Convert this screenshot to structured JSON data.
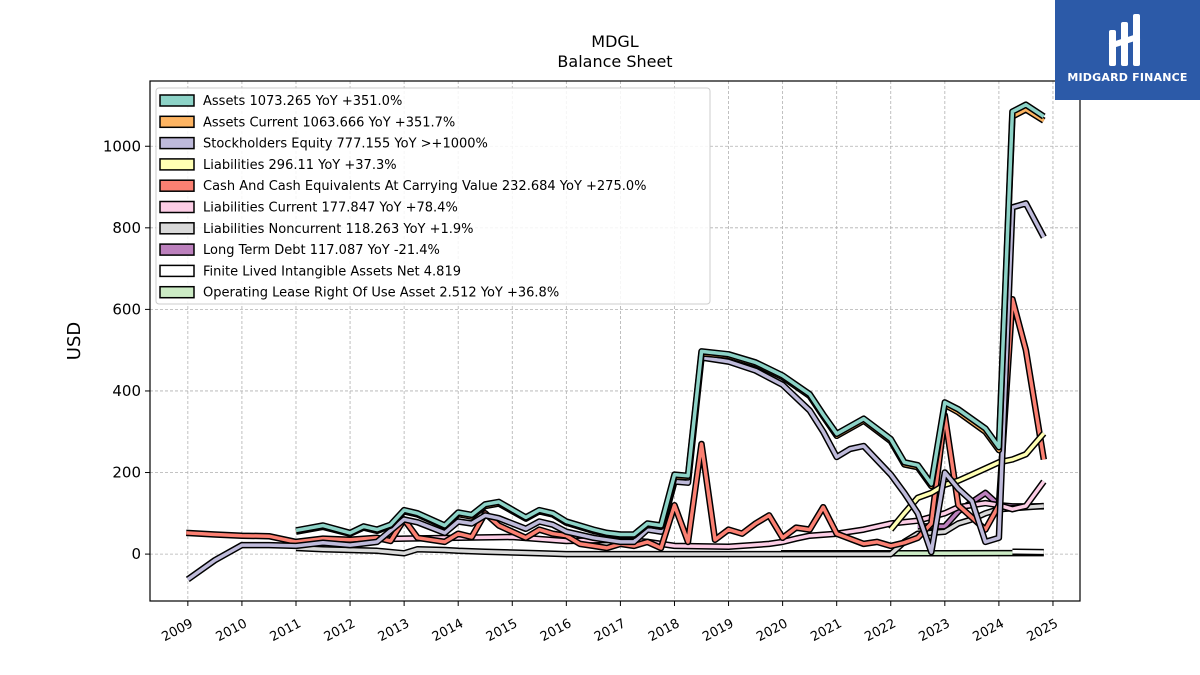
{
  "chart_data": {
    "type": "line",
    "title": "MDGL",
    "subtitle": "Balance  Sheet",
    "xlabel": "",
    "ylabel": "USD",
    "xlim": [
      2008.3,
      2025.5
    ],
    "ylim": [
      -115,
      1160
    ],
    "yticks": [
      0,
      200,
      400,
      600,
      800,
      1000
    ],
    "xticks": [
      "2009",
      "2010",
      "2011",
      "2012",
      "2013",
      "2014",
      "2015",
      "2016",
      "2017",
      "2018",
      "2019",
      "2020",
      "2021",
      "2022",
      "2023",
      "2024",
      "2025"
    ],
    "grid": true,
    "legend_position": "top-left",
    "series": [
      {
        "name": "Assets",
        "label": "Assets  1073.265 YoY +351.0%",
        "color": "#8dd3c7",
        "points": [
          [
            2011,
            58
          ],
          [
            2011.5,
            70
          ],
          [
            2012,
            52
          ],
          [
            2012.25,
            68
          ],
          [
            2012.5,
            60
          ],
          [
            2012.75,
            72
          ],
          [
            2013,
            108
          ],
          [
            2013.25,
            100
          ],
          [
            2013.75,
            70
          ],
          [
            2014,
            102
          ],
          [
            2014.25,
            96
          ],
          [
            2014.5,
            122
          ],
          [
            2014.75,
            128
          ],
          [
            2015.25,
            90
          ],
          [
            2015.5,
            108
          ],
          [
            2015.75,
            100
          ],
          [
            2016,
            80
          ],
          [
            2016.5,
            60
          ],
          [
            2016.75,
            52
          ],
          [
            2017,
            48
          ],
          [
            2017.25,
            48
          ],
          [
            2017.5,
            75
          ],
          [
            2017.75,
            70
          ],
          [
            2018,
            195
          ],
          [
            2018.25,
            192
          ],
          [
            2018.5,
            497
          ],
          [
            2019,
            490
          ],
          [
            2019.5,
            470
          ],
          [
            2020,
            438
          ],
          [
            2020.5,
            392
          ],
          [
            2020.75,
            342
          ],
          [
            2021,
            295
          ],
          [
            2021.5,
            332
          ],
          [
            2022,
            282
          ],
          [
            2022.25,
            225
          ],
          [
            2022.5,
            218
          ],
          [
            2022.75,
            172
          ],
          [
            2023,
            372
          ],
          [
            2023.25,
            355
          ],
          [
            2023.75,
            308
          ],
          [
            2024,
            262
          ],
          [
            2024.25,
            1085
          ],
          [
            2024.5,
            1102
          ],
          [
            2024.83,
            1073
          ]
        ]
      },
      {
        "name": "Assets Current",
        "label": "Assets Current  1063.666 YoY +351.7%",
        "color": "#fdb462",
        "points": [
          [
            2011,
            55
          ],
          [
            2011.5,
            67
          ],
          [
            2012,
            50
          ],
          [
            2012.25,
            65
          ],
          [
            2012.5,
            57
          ],
          [
            2012.75,
            70
          ],
          [
            2013,
            105
          ],
          [
            2013.25,
            97
          ],
          [
            2013.75,
            68
          ],
          [
            2014,
            98
          ],
          [
            2014.25,
            92
          ],
          [
            2014.5,
            118
          ],
          [
            2014.75,
            124
          ],
          [
            2015.25,
            87
          ],
          [
            2015.5,
            105
          ],
          [
            2015.75,
            97
          ],
          [
            2016,
            77
          ],
          [
            2016.5,
            57
          ],
          [
            2016.75,
            50
          ],
          [
            2017,
            45
          ],
          [
            2017.25,
            45
          ],
          [
            2017.5,
            72
          ],
          [
            2017.75,
            67
          ],
          [
            2018,
            190
          ],
          [
            2018.25,
            188
          ],
          [
            2018.5,
            492
          ],
          [
            2019,
            486
          ],
          [
            2019.5,
            466
          ],
          [
            2020,
            434
          ],
          [
            2020.5,
            388
          ],
          [
            2020.75,
            338
          ],
          [
            2021,
            290
          ],
          [
            2021.5,
            327
          ],
          [
            2022,
            277
          ],
          [
            2022.25,
            220
          ],
          [
            2022.5,
            213
          ],
          [
            2022.75,
            167
          ],
          [
            2023,
            366
          ],
          [
            2023.25,
            348
          ],
          [
            2023.75,
            300
          ],
          [
            2024,
            255
          ],
          [
            2024.25,
            1073
          ],
          [
            2024.5,
            1090
          ],
          [
            2024.83,
            1063
          ]
        ]
      },
      {
        "name": "Stockholders Equity",
        "label": "Stockholders Equity  777.155 YoY >+1000%",
        "color": "#bebada",
        "points": [
          [
            2009,
            -62
          ],
          [
            2009.5,
            -15
          ],
          [
            2010,
            22
          ],
          [
            2010.5,
            22
          ],
          [
            2011,
            20
          ],
          [
            2011.5,
            28
          ],
          [
            2012,
            22
          ],
          [
            2012.5,
            30
          ],
          [
            2013,
            85
          ],
          [
            2013.25,
            78
          ],
          [
            2013.75,
            52
          ],
          [
            2014,
            80
          ],
          [
            2014.25,
            75
          ],
          [
            2014.5,
            95
          ],
          [
            2014.75,
            88
          ],
          [
            2015.25,
            62
          ],
          [
            2015.5,
            80
          ],
          [
            2015.75,
            72
          ],
          [
            2016,
            55
          ],
          [
            2016.5,
            40
          ],
          [
            2017,
            30
          ],
          [
            2017.25,
            30
          ],
          [
            2017.5,
            60
          ],
          [
            2017.75,
            55
          ],
          [
            2018,
            178
          ],
          [
            2018.25,
            175
          ],
          [
            2018.5,
            482
          ],
          [
            2019,
            472
          ],
          [
            2019.5,
            450
          ],
          [
            2020,
            415
          ],
          [
            2020.5,
            352
          ],
          [
            2020.75,
            300
          ],
          [
            2021,
            238
          ],
          [
            2021.25,
            258
          ],
          [
            2021.5,
            265
          ],
          [
            2022,
            195
          ],
          [
            2022.25,
            150
          ],
          [
            2022.5,
            100
          ],
          [
            2022.75,
            5
          ],
          [
            2023,
            200
          ],
          [
            2023.25,
            160
          ],
          [
            2023.5,
            130
          ],
          [
            2023.75,
            30
          ],
          [
            2024,
            40
          ],
          [
            2024.25,
            850
          ],
          [
            2024.5,
            860
          ],
          [
            2024.83,
            777
          ]
        ]
      },
      {
        "name": "Liabilities",
        "label": "Liabilities  296.11 YoY +37.3%",
        "color": "#ffffb3",
        "points": [
          [
            2022,
            60
          ],
          [
            2022.25,
            100
          ],
          [
            2022.5,
            138
          ],
          [
            2022.75,
            150
          ],
          [
            2023,
            170
          ],
          [
            2023.25,
            180
          ],
          [
            2023.5,
            195
          ],
          [
            2023.75,
            210
          ],
          [
            2024,
            225
          ],
          [
            2024.25,
            232
          ],
          [
            2024.5,
            245
          ],
          [
            2024.83,
            296
          ]
        ]
      },
      {
        "name": "Cash And Cash Equivalents At Carrying Value",
        "label": "Cash And Cash Equivalents At Carrying Value  232.684 YoY +275.0%",
        "color": "#fb8072",
        "points": [
          [
            2008.97,
            52
          ],
          [
            2009.5,
            48
          ],
          [
            2010,
            45
          ],
          [
            2010.5,
            44
          ],
          [
            2011,
            30
          ],
          [
            2011.5,
            38
          ],
          [
            2012,
            35
          ],
          [
            2012.5,
            40
          ],
          [
            2012.75,
            32
          ],
          [
            2013,
            85
          ],
          [
            2013.25,
            40
          ],
          [
            2013.75,
            30
          ],
          [
            2014,
            50
          ],
          [
            2014.25,
            42
          ],
          [
            2014.5,
            100
          ],
          [
            2014.75,
            70
          ],
          [
            2015.25,
            40
          ],
          [
            2015.5,
            60
          ],
          [
            2015.75,
            50
          ],
          [
            2016,
            45
          ],
          [
            2016.25,
            25
          ],
          [
            2016.5,
            20
          ],
          [
            2016.75,
            15
          ],
          [
            2017,
            25
          ],
          [
            2017.25,
            20
          ],
          [
            2017.5,
            30
          ],
          [
            2017.75,
            15
          ],
          [
            2018,
            120
          ],
          [
            2018.25,
            30
          ],
          [
            2018.5,
            270
          ],
          [
            2018.75,
            35
          ],
          [
            2019,
            60
          ],
          [
            2019.25,
            50
          ],
          [
            2019.5,
            75
          ],
          [
            2019.75,
            95
          ],
          [
            2020,
            40
          ],
          [
            2020.25,
            65
          ],
          [
            2020.5,
            60
          ],
          [
            2020.75,
            115
          ],
          [
            2021,
            50
          ],
          [
            2021.5,
            25
          ],
          [
            2021.75,
            30
          ],
          [
            2022,
            20
          ],
          [
            2022.25,
            28
          ],
          [
            2022.5,
            40
          ],
          [
            2022.75,
            75
          ],
          [
            2023,
            340
          ],
          [
            2023.25,
            120
          ],
          [
            2023.5,
            90
          ],
          [
            2023.75,
            60
          ],
          [
            2024,
            120
          ],
          [
            2024.25,
            625
          ],
          [
            2024.5,
            500
          ],
          [
            2024.83,
            232
          ]
        ]
      },
      {
        "name": "Liabilities Current",
        "label": "Liabilities Current  177.847 YoY +78.4%",
        "color": "#fccde5",
        "points": [
          [
            2011,
            30
          ],
          [
            2012,
            35
          ],
          [
            2013,
            38
          ],
          [
            2014,
            40
          ],
          [
            2015,
            42
          ],
          [
            2016,
            32
          ],
          [
            2017,
            35
          ],
          [
            2017.5,
            30
          ],
          [
            2018,
            20
          ],
          [
            2019,
            18
          ],
          [
            2019.75,
            25
          ],
          [
            2020,
            30
          ],
          [
            2020.25,
            38
          ],
          [
            2020.5,
            45
          ],
          [
            2021,
            50
          ],
          [
            2021.5,
            60
          ],
          [
            2022,
            75
          ],
          [
            2022.5,
            82
          ],
          [
            2023,
            100
          ],
          [
            2023.25,
            115
          ],
          [
            2023.5,
            120
          ],
          [
            2023.75,
            125
          ],
          [
            2024,
            120
          ],
          [
            2024.25,
            110
          ],
          [
            2024.5,
            118
          ],
          [
            2024.83,
            178
          ]
        ]
      },
      {
        "name": "Liabilities Noncurrent",
        "label": "Liabilities Noncurrent  118.263 YoY +1.9%",
        "color": "#d9d9d9",
        "points": [
          [
            2011,
            15
          ],
          [
            2011.5,
            12
          ],
          [
            2012,
            10
          ],
          [
            2012.5,
            8
          ],
          [
            2013,
            2
          ],
          [
            2013.25,
            12
          ],
          [
            2013.75,
            10
          ],
          [
            2014,
            8
          ],
          [
            2014.5,
            6
          ],
          [
            2015,
            4
          ],
          [
            2015.5,
            2
          ],
          [
            2016,
            0
          ],
          [
            2017,
            0
          ],
          [
            2018,
            0
          ],
          [
            2019,
            0
          ],
          [
            2020,
            0
          ],
          [
            2021,
            0
          ],
          [
            2022,
            0
          ],
          [
            2022.25,
            30
          ],
          [
            2022.5,
            50
          ],
          [
            2023,
            55
          ],
          [
            2023.25,
            75
          ],
          [
            2023.5,
            85
          ],
          [
            2023.75,
            100
          ],
          [
            2024,
            110
          ],
          [
            2024.5,
            115
          ],
          [
            2024.83,
            118
          ]
        ]
      },
      {
        "name": "Long Term Debt",
        "label": "Long Term Debt  117.087 YoY -21.4%",
        "color": "#bc80bd",
        "points": [
          [
            2022.5,
            68
          ],
          [
            2023,
            68
          ],
          [
            2023.25,
            105
          ],
          [
            2023.75,
            150
          ],
          [
            2024,
            120
          ],
          [
            2024.25,
            117
          ],
          [
            2024.83,
            117
          ]
        ]
      },
      {
        "name": "Finite Lived Intangible Assets Net",
        "label": "Finite Lived Intangible Assets Net  4.819",
        "color": "#ffffff",
        "points": [
          [
            2024.25,
            6
          ],
          [
            2024.83,
            5
          ]
        ]
      },
      {
        "name": "Operating Lease Right Of Use Asset",
        "label": "Operating Lease Right Of Use Asset  2.512 YoY +36.8%",
        "color": "#ccebc5",
        "points": [
          [
            2019.97,
            2
          ],
          [
            2021,
            2
          ],
          [
            2022,
            2
          ],
          [
            2023,
            2
          ],
          [
            2024,
            2.5
          ],
          [
            2024.83,
            2.5
          ]
        ]
      }
    ]
  },
  "logo": {
    "text": "MIDGARD FINANCE"
  }
}
